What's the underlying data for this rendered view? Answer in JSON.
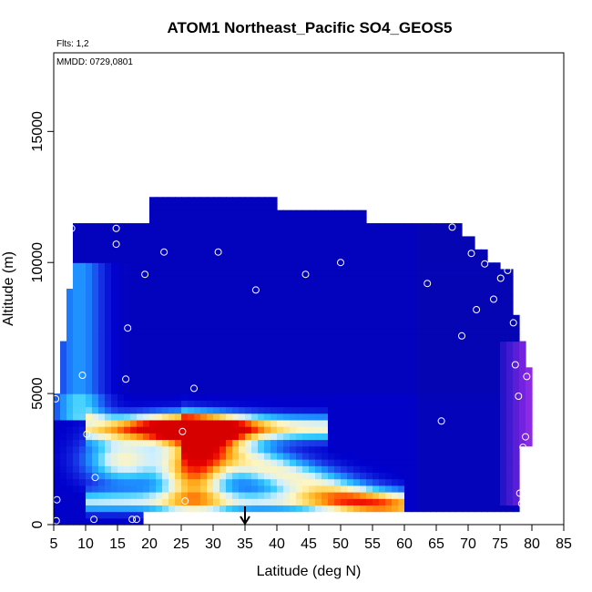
{
  "chart_data": {
    "type": "heatmap",
    "title": "ATOM1 Northeast_Pacific SO4_GEOS5",
    "flights_note": "Flts: 1,2",
    "date_note": "MMDD: 0729,0801",
    "xlabel": "Latitude (deg N)",
    "ylabel": "Altitude (m)",
    "xlim": [
      5,
      85
    ],
    "ylim": [
      0,
      18000
    ],
    "x_ticks": [
      5,
      10,
      15,
      20,
      25,
      30,
      35,
      40,
      45,
      50,
      55,
      60,
      65,
      70,
      75,
      80,
      85
    ],
    "y_ticks": [
      0,
      5000,
      10000,
      15000
    ],
    "grid": false,
    "colormap": [
      "#0a0aa0",
      "#0000cc",
      "#1a3ae8",
      "#1e8cff",
      "#33ccff",
      "#cfefff",
      "#fff5c0",
      "#ffd24a",
      "#ff9a10",
      "#ff3a00",
      "#e60000",
      "#d60000"
    ],
    "purple_color": "#8a2be2",
    "marker_latitude": 35,
    "sample_points": [
      [
        5.3,
        4800
      ],
      [
        5.5,
        950
      ],
      [
        5.4,
        150
      ],
      [
        7.8,
        11300
      ],
      [
        9.5,
        5700
      ],
      [
        10.2,
        3450
      ],
      [
        11.5,
        1800
      ],
      [
        11.3,
        200
      ],
      [
        14.8,
        11300
      ],
      [
        14.8,
        10700
      ],
      [
        16.3,
        5550
      ],
      [
        16.6,
        7500
      ],
      [
        17.3,
        200
      ],
      [
        18.0,
        200
      ],
      [
        19.3,
        9550
      ],
      [
        22.3,
        10400
      ],
      [
        25.2,
        3550
      ],
      [
        25.6,
        900
      ],
      [
        27.0,
        5200
      ],
      [
        27.5,
        12650
      ],
      [
        30.8,
        10400
      ],
      [
        36.7,
        8950
      ],
      [
        44.5,
        9550
      ],
      [
        50.0,
        10000
      ],
      [
        63.6,
        9200
      ],
      [
        65.8,
        3950
      ],
      [
        67.5,
        11350
      ],
      [
        69.0,
        7200
      ],
      [
        70.5,
        10350
      ],
      [
        71.3,
        8200
      ],
      [
        72.6,
        9950
      ],
      [
        74.0,
        8600
      ],
      [
        75.1,
        9400
      ],
      [
        76.2,
        9700
      ],
      [
        77.1,
        7700
      ],
      [
        77.4,
        6100
      ],
      [
        77.9,
        4900
      ],
      [
        78.1,
        1200
      ],
      [
        78.4,
        800
      ],
      [
        78.6,
        2950
      ],
      [
        79.0,
        3350
      ],
      [
        79.2,
        5650
      ]
    ]
  }
}
